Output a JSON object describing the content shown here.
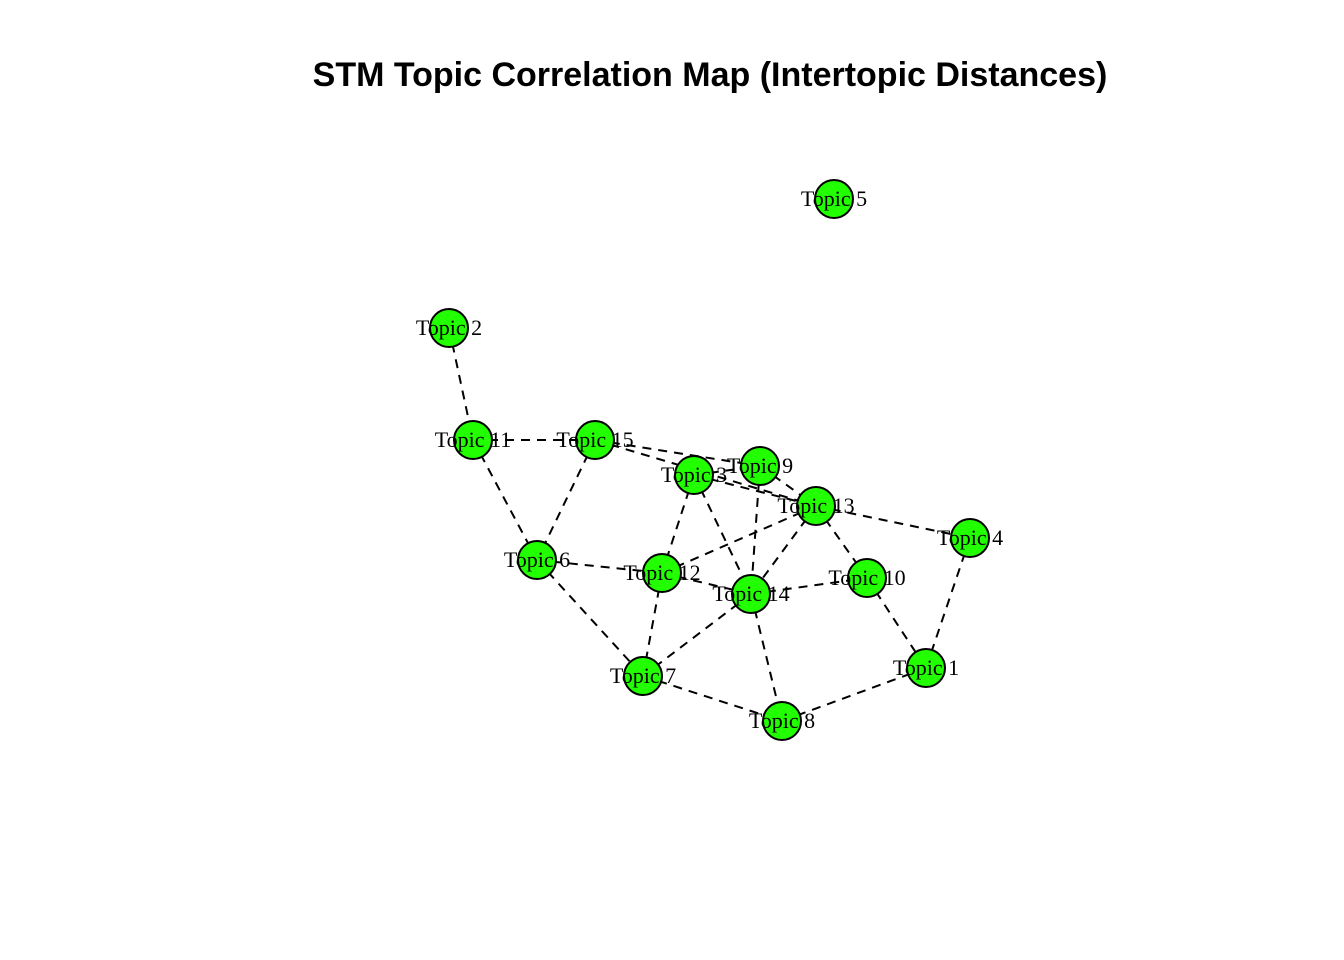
{
  "title": "STM Topic Correlation Map (Intertopic Distances)",
  "colors": {
    "node_fill": "#22ff00",
    "node_stroke": "#000000",
    "edge": "#000000"
  },
  "chart_data": {
    "type": "network",
    "edge_style": "dashed",
    "nodes": [
      {
        "id": "t1",
        "label": "Topic 1"
      },
      {
        "id": "t2",
        "label": "Topic 2"
      },
      {
        "id": "t3",
        "label": "Topic 3"
      },
      {
        "id": "t4",
        "label": "Topic 4"
      },
      {
        "id": "t5",
        "label": "Topic 5"
      },
      {
        "id": "t6",
        "label": "Topic 6"
      },
      {
        "id": "t7",
        "label": "Topic 7"
      },
      {
        "id": "t8",
        "label": "Topic 8"
      },
      {
        "id": "t9",
        "label": "Topic 9"
      },
      {
        "id": "t10",
        "label": "Topic 10"
      },
      {
        "id": "t11",
        "label": "Topic 11"
      },
      {
        "id": "t12",
        "label": "Topic 12"
      },
      {
        "id": "t13",
        "label": "Topic 13"
      },
      {
        "id": "t14",
        "label": "Topic 14"
      },
      {
        "id": "t15",
        "label": "Topic 15"
      }
    ],
    "edges": [
      [
        "t2",
        "t11"
      ],
      [
        "t11",
        "t15"
      ],
      [
        "t11",
        "t6"
      ],
      [
        "t15",
        "t6"
      ],
      [
        "t15",
        "t9"
      ],
      [
        "t15",
        "t13"
      ],
      [
        "t3",
        "t9"
      ],
      [
        "t3",
        "t13"
      ],
      [
        "t3",
        "t12"
      ],
      [
        "t3",
        "t14"
      ],
      [
        "t9",
        "t13"
      ],
      [
        "t9",
        "t14"
      ],
      [
        "t13",
        "t4"
      ],
      [
        "t13",
        "t10"
      ],
      [
        "t13",
        "t12"
      ],
      [
        "t13",
        "t14"
      ],
      [
        "t6",
        "t12"
      ],
      [
        "t6",
        "t7"
      ],
      [
        "t12",
        "t14"
      ],
      [
        "t12",
        "t7"
      ],
      [
        "t14",
        "t10"
      ],
      [
        "t14",
        "t7"
      ],
      [
        "t14",
        "t8"
      ],
      [
        "t10",
        "t1"
      ],
      [
        "t4",
        "t1"
      ],
      [
        "t7",
        "t8"
      ],
      [
        "t8",
        "t1"
      ]
    ]
  }
}
